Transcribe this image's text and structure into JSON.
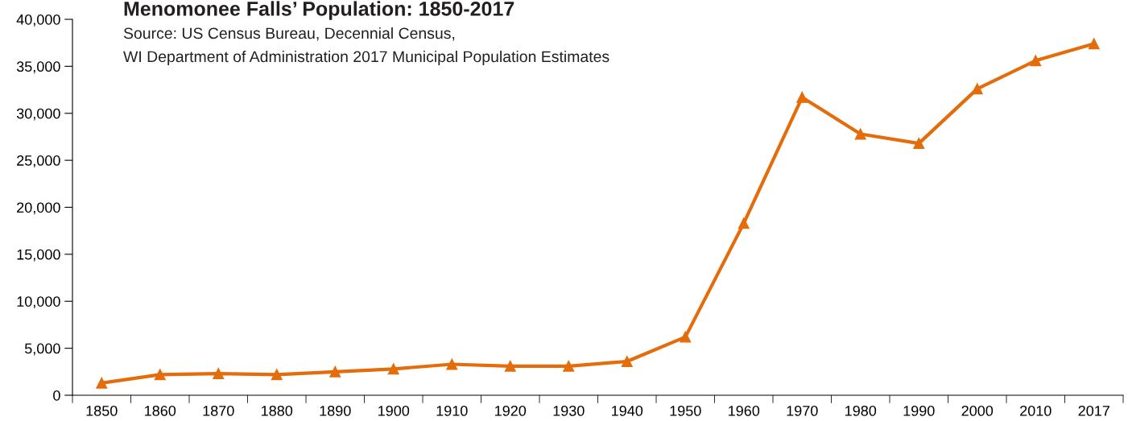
{
  "chart_data": {
    "type": "line",
    "title": "Menomonee Falls’ Population: 1850-2017",
    "annotations": [
      "Source: US Census Bureau, Decennial Census,",
      "WI Department of Administration 2017 Municipal Population Estimates"
    ],
    "categories": [
      "1850",
      "1860",
      "1870",
      "1880",
      "1890",
      "1900",
      "1910",
      "1920",
      "1930",
      "1940",
      "1950",
      "1960",
      "1970",
      "1980",
      "1990",
      "2000",
      "2010",
      "2017"
    ],
    "series": [
      {
        "color": "#e46c0a",
        "values": [
          1300,
          2200,
          2300,
          2200,
          2500,
          2800,
          3300,
          3100,
          3100,
          3600,
          6200,
          18300,
          31700,
          27800,
          26800,
          32600,
          35600,
          37400
        ]
      }
    ],
    "ylim": [
      0,
      40000
    ],
    "yticks": [
      {
        "value": 0,
        "label": "0"
      },
      {
        "value": 5000,
        "label": "5,000"
      },
      {
        "value": 10000,
        "label": "10,000"
      },
      {
        "value": 15000,
        "label": "15,000"
      },
      {
        "value": 20000,
        "label": "20,000"
      },
      {
        "value": 25000,
        "label": "25,000"
      },
      {
        "value": 30000,
        "label": "30,000"
      },
      {
        "value": 35000,
        "label": "35,000"
      },
      {
        "value": 40000,
        "label": "40,000"
      }
    ],
    "marker": "triangle",
    "line_style": "solid"
  }
}
